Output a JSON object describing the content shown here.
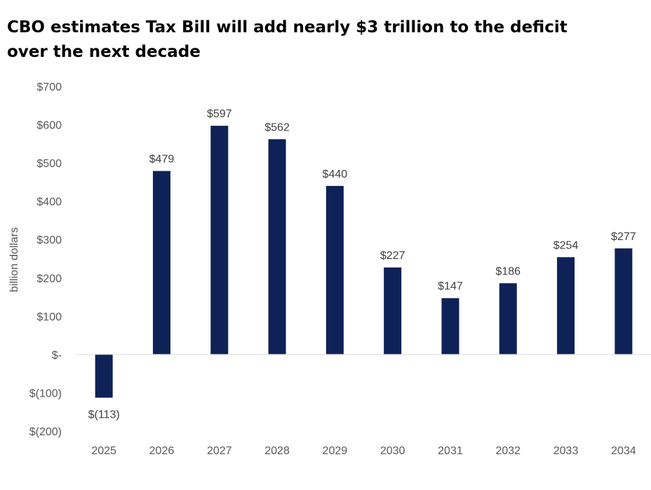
{
  "title_lines": [
    "CBO estimates Tax Bill will add nearly $3 trillion to the deficit",
    "over the next decade"
  ],
  "chart_data": {
    "type": "bar",
    "title": "CBO estimates Tax Bill will add nearly $3 trillion to the deficit over the next decade",
    "xlabel": "",
    "ylabel": "billion dollars",
    "categories": [
      "2025",
      "2026",
      "2027",
      "2028",
      "2029",
      "2030",
      "2031",
      "2032",
      "2033",
      "2034"
    ],
    "values": [
      -113,
      479,
      597,
      562,
      440,
      227,
      147,
      186,
      254,
      277
    ],
    "data_labels": [
      "$(113)",
      "$479",
      "$597",
      "$562",
      "$440",
      "$227",
      "$147",
      "$186",
      "$254",
      "$277"
    ],
    "ylim": [
      -200,
      700
    ],
    "yticks": [
      700,
      600,
      500,
      400,
      300,
      200,
      100,
      0,
      -100,
      -200
    ],
    "ytick_labels": [
      "$700",
      "$600",
      "$500",
      "$400",
      "$300",
      "$200",
      "$100",
      "$-",
      "$(100)",
      "$(200)"
    ],
    "bar_color": "#0e2257",
    "grid": false,
    "legend": "none"
  }
}
